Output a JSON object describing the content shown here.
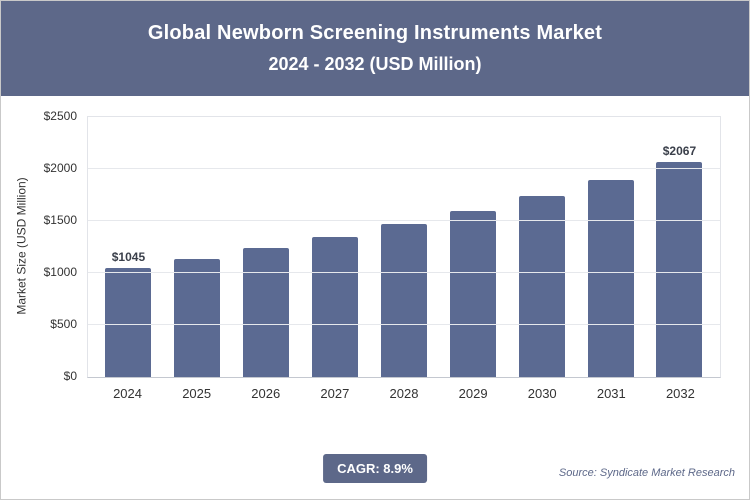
{
  "header": {
    "title_line1": "Global Newborn Screening Instruments Market",
    "title_line2": "2024 - 2032 (USD Million)"
  },
  "chart_data": {
    "type": "bar",
    "title": "Global Newborn Screening Instruments Market",
    "subtitle": "2024 - 2032 (USD Million)",
    "categories": [
      "2024",
      "2025",
      "2026",
      "2027",
      "2028",
      "2029",
      "2030",
      "2031",
      "2032"
    ],
    "values": [
      1045,
      1138,
      1239,
      1349,
      1469,
      1600,
      1742,
      1897,
      2067
    ],
    "value_labels": [
      "$1045",
      "",
      "",
      "",
      "",
      "",
      "",
      "",
      "$2067"
    ],
    "ylabel": "Market Size (USD Million)",
    "ylim": [
      0,
      2500
    ],
    "ytick_step": 500,
    "ytick_labels": [
      "$0",
      "$500",
      "$1000",
      "$1500",
      "$2000",
      "$2500"
    ],
    "grid": true,
    "legend": "none",
    "cagr": "8.9%"
  },
  "footer": {
    "cagr_label": "CAGR: 8.9%",
    "source": "Source: Syndicate Market Research"
  },
  "colors": {
    "header_bg": "#5d6889",
    "bar": "#5b6a92",
    "badge_bg": "#5d6889",
    "source_text": "#5d6889"
  }
}
